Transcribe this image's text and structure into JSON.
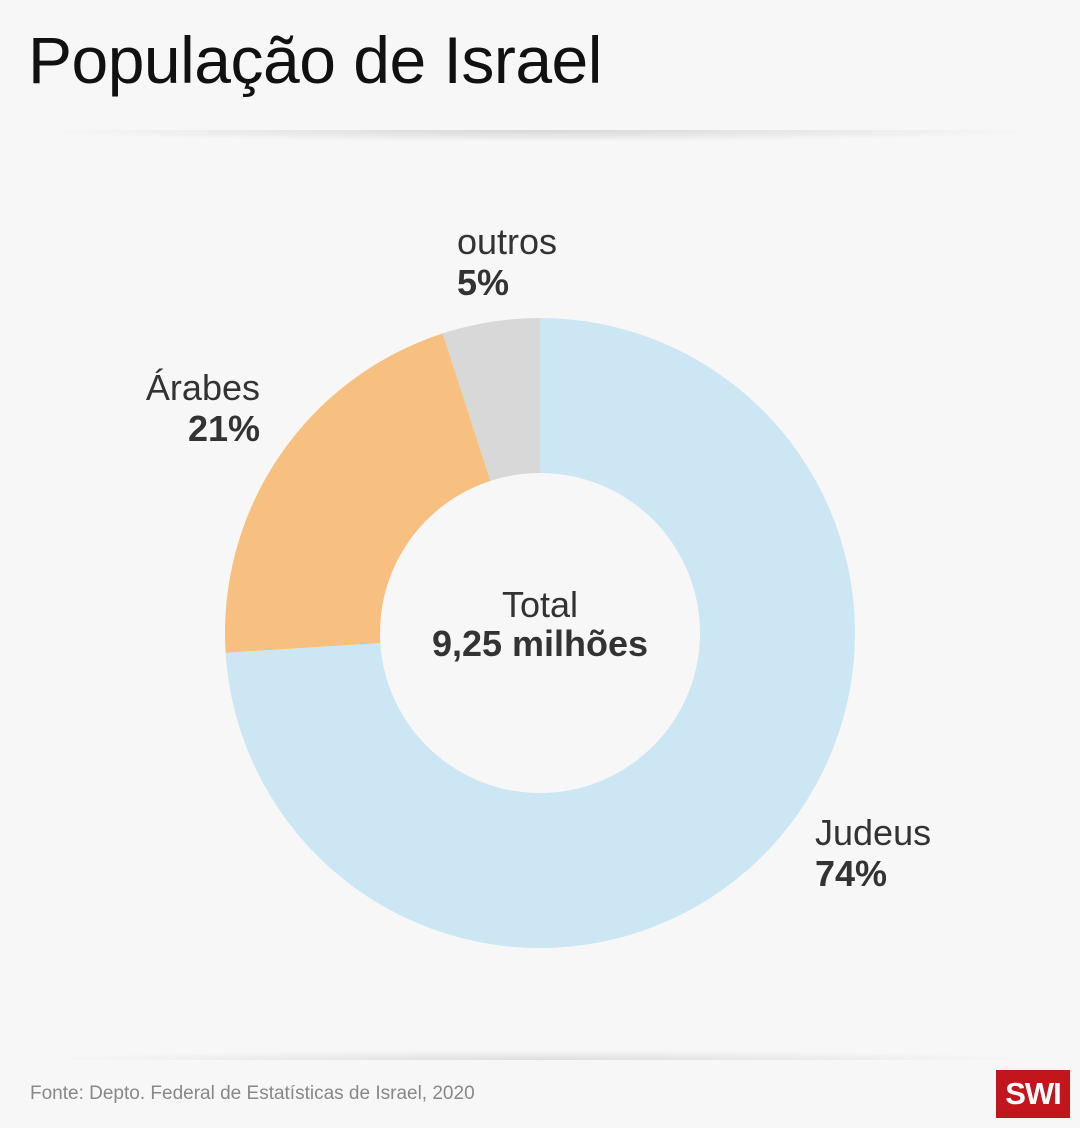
{
  "title": "População de Israel",
  "source": "Fonte: Depto. Federal de Estatísticas de Israel, 2020",
  "logo": "SWI",
  "chart_data": {
    "type": "pie",
    "title": "População de Israel",
    "center_label": "Total",
    "center_value": "9,25 milhões",
    "slices": [
      {
        "name": "Judeus",
        "value": 74,
        "label": "74%",
        "color": "#cce6f4"
      },
      {
        "name": "Árabes",
        "value": 21,
        "label": "21%",
        "color": "#f7c080"
      },
      {
        "name": "outros",
        "value": 5,
        "label": "5%",
        "color": "#d8d8d8"
      }
    ]
  }
}
